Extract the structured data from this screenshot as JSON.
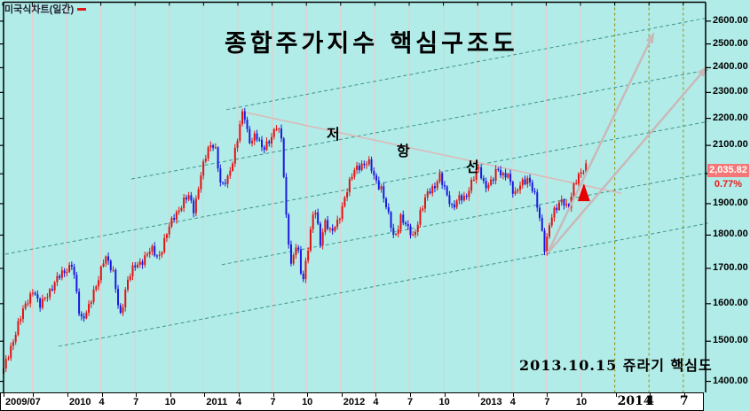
{
  "window": {
    "legend": "미국식차트(일간)",
    "legend_marker_color": "#e01818"
  },
  "title": "종합주가지수 핵심구조도",
  "watermark": "2013.10.15 쥬라기 핵심도",
  "annotations": {
    "resistance_chars": [
      "저",
      "항",
      "선"
    ]
  },
  "price_tag": {
    "value": "2,035.82",
    "change_pct": "0.77%",
    "bg": "#f57878",
    "text_color": "#ffffff",
    "pct_color": "#e02020"
  },
  "colors": {
    "background": "#b2ece8",
    "grid_pink": "#eec8c8",
    "channel_teal": "#3f948c",
    "future_olive": "#9a9a28",
    "candle_up": "#e31212",
    "candle_down": "#1a1adf",
    "arrow": "#c9b9b9",
    "resistance_line": "#dfb6b6",
    "axis": "#000000",
    "marker_red": "#e80000"
  },
  "chart_data": {
    "type": "candlestick",
    "title": "종합주가지수 핵심구조도",
    "note": "KOSPI composite index, American-style daily candles, log price scale, 2009/07 - 2013/10 with projection to 2014",
    "scale": "log",
    "last_price": 2035.82,
    "change_pct": 0.77,
    "num_candles": 240,
    "y_axis": {
      "tick_values": [
        1400,
        1500,
        1600,
        1700,
        1800,
        1900,
        2000,
        2100,
        2200,
        2300,
        2400,
        2500,
        2600
      ],
      "labeled_values": [
        1400,
        1500,
        1600,
        1700,
        1800,
        1900,
        2100,
        2200,
        2300,
        2400,
        2500,
        2600
      ]
    },
    "x_ticks": [
      {
        "t": 2009.5,
        "label": "2009/07",
        "align": "year"
      },
      {
        "t": 2009.75,
        "label": ""
      },
      {
        "t": 2010.0,
        "label": "2010",
        "align": "year"
      },
      {
        "t": 2010.25,
        "label": "4"
      },
      {
        "t": 2010.5,
        "label": "7"
      },
      {
        "t": 2010.75,
        "label": "10"
      },
      {
        "t": 2011.0,
        "label": "2011",
        "align": "year"
      },
      {
        "t": 2011.25,
        "label": "4"
      },
      {
        "t": 2011.5,
        "label": "7"
      },
      {
        "t": 2011.75,
        "label": "10"
      },
      {
        "t": 2012.0,
        "label": "2012",
        "align": "year"
      },
      {
        "t": 2012.25,
        "label": "4"
      },
      {
        "t": 2012.5,
        "label": "7"
      },
      {
        "t": 2012.75,
        "label": "10"
      },
      {
        "t": 2013.0,
        "label": "2013",
        "align": "year"
      },
      {
        "t": 2013.25,
        "label": "4"
      },
      {
        "t": 2013.5,
        "label": "7"
      },
      {
        "t": 2013.75,
        "label": "10"
      },
      {
        "t": 2014.0,
        "label": "2014",
        "align": "year",
        "emph": true
      },
      {
        "t": 2014.25,
        "label": "4",
        "emph": true
      },
      {
        "t": 2014.5,
        "label": "7",
        "emph": true
      }
    ],
    "past_quarter_gridlines": {
      "from": 2009.75,
      "to": 2013.75,
      "step": 0.25
    },
    "future_gridlines_t": [
      2014.0,
      2014.25,
      2014.5
    ],
    "anchors": [
      [
        2009.54,
        1425
      ],
      [
        2009.6,
        1495
      ],
      [
        2009.66,
        1555
      ],
      [
        2009.72,
        1615
      ],
      [
        2009.76,
        1645
      ],
      [
        2009.8,
        1585
      ],
      [
        2009.86,
        1630
      ],
      [
        2009.93,
        1665
      ],
      [
        2010.0,
        1700
      ],
      [
        2010.04,
        1716
      ],
      [
        2010.1,
        1550
      ],
      [
        2010.16,
        1595
      ],
      [
        2010.22,
        1645
      ],
      [
        2010.28,
        1748
      ],
      [
        2010.34,
        1680
      ],
      [
        2010.39,
        1565
      ],
      [
        2010.44,
        1660
      ],
      [
        2010.5,
        1705
      ],
      [
        2010.56,
        1730
      ],
      [
        2010.62,
        1752
      ],
      [
        2010.67,
        1735
      ],
      [
        2010.73,
        1800
      ],
      [
        2010.79,
        1865
      ],
      [
        2010.85,
        1905
      ],
      [
        2010.89,
        1920
      ],
      [
        2010.93,
        1880
      ],
      [
        2010.98,
        2000
      ],
      [
        2011.04,
        2090
      ],
      [
        2011.08,
        2115
      ],
      [
        2011.13,
        1945
      ],
      [
        2011.18,
        1985
      ],
      [
        2011.23,
        2090
      ],
      [
        2011.29,
        2228
      ],
      [
        2011.33,
        2115
      ],
      [
        2011.38,
        2145
      ],
      [
        2011.43,
        2075
      ],
      [
        2011.48,
        2125
      ],
      [
        2011.53,
        2170
      ],
      [
        2011.57,
        2115
      ],
      [
        2011.6,
        1870
      ],
      [
        2011.64,
        1710
      ],
      [
        2011.68,
        1775
      ],
      [
        2011.72,
        1652
      ],
      [
        2011.77,
        1790
      ],
      [
        2011.81,
        1890
      ],
      [
        2011.85,
        1770
      ],
      [
        2011.89,
        1855
      ],
      [
        2011.93,
        1805
      ],
      [
        2011.98,
        1835
      ],
      [
        2012.04,
        1945
      ],
      [
        2012.1,
        2005
      ],
      [
        2012.15,
        2035
      ],
      [
        2012.2,
        2045
      ],
      [
        2012.25,
        1975
      ],
      [
        2012.3,
        1955
      ],
      [
        2012.34,
        1875
      ],
      [
        2012.39,
        1782
      ],
      [
        2012.44,
        1865
      ],
      [
        2012.49,
        1815
      ],
      [
        2012.53,
        1790
      ],
      [
        2012.58,
        1875
      ],
      [
        2012.63,
        1925
      ],
      [
        2012.68,
        1955
      ],
      [
        2012.72,
        2002
      ],
      [
        2012.77,
        1925
      ],
      [
        2012.81,
        1890
      ],
      [
        2012.86,
        1925
      ],
      [
        2012.91,
        1905
      ],
      [
        2012.96,
        1985
      ],
      [
        2013.0,
        2030
      ],
      [
        2013.05,
        1945
      ],
      [
        2013.09,
        1975
      ],
      [
        2013.14,
        2018
      ],
      [
        2013.18,
        1982
      ],
      [
        2013.22,
        2005
      ],
      [
        2013.27,
        1928
      ],
      [
        2013.32,
        1962
      ],
      [
        2013.37,
        1992
      ],
      [
        2013.41,
        1938
      ],
      [
        2013.45,
        1852
      ],
      [
        2013.49,
        1758
      ],
      [
        2013.53,
        1855
      ],
      [
        2013.58,
        1882
      ],
      [
        2013.62,
        1918
      ],
      [
        2013.66,
        1888
      ],
      [
        2013.7,
        1948
      ],
      [
        2013.75,
        2005
      ],
      [
        2013.79,
        2035.82
      ]
    ],
    "channel_lines": [
      {
        "t1": 2011.166,
        "p1": 2233,
        "t2": 2014.68,
        "p2": 2615
      },
      {
        "t1": 2010.473,
        "p1": 1982,
        "t2": 2014.68,
        "p2": 2391
      },
      {
        "t1": 2009.553,
        "p1": 1742,
        "t2": 2014.68,
        "p2": 2188
      },
      {
        "t1": 2011.133,
        "p1": 1711,
        "t2": 2014.68,
        "p2": 2004
      },
      {
        "t1": 2009.942,
        "p1": 1487,
        "t2": 2014.68,
        "p2": 1837
      }
    ],
    "resistance_line": {
      "t1": 2011.31,
      "p1": 2222,
      "t2": 2014.05,
      "p2": 1934
    },
    "projection_arrows": [
      {
        "t1": 2013.51,
        "p1": 1745,
        "t2": 2014.29,
        "p2": 2553
      },
      {
        "t1": 2013.51,
        "p1": 1745,
        "t2": 2014.68,
        "p2": 2408
      }
    ],
    "buy_marker": {
      "t": 2013.775,
      "price_apex": 1967
    }
  }
}
